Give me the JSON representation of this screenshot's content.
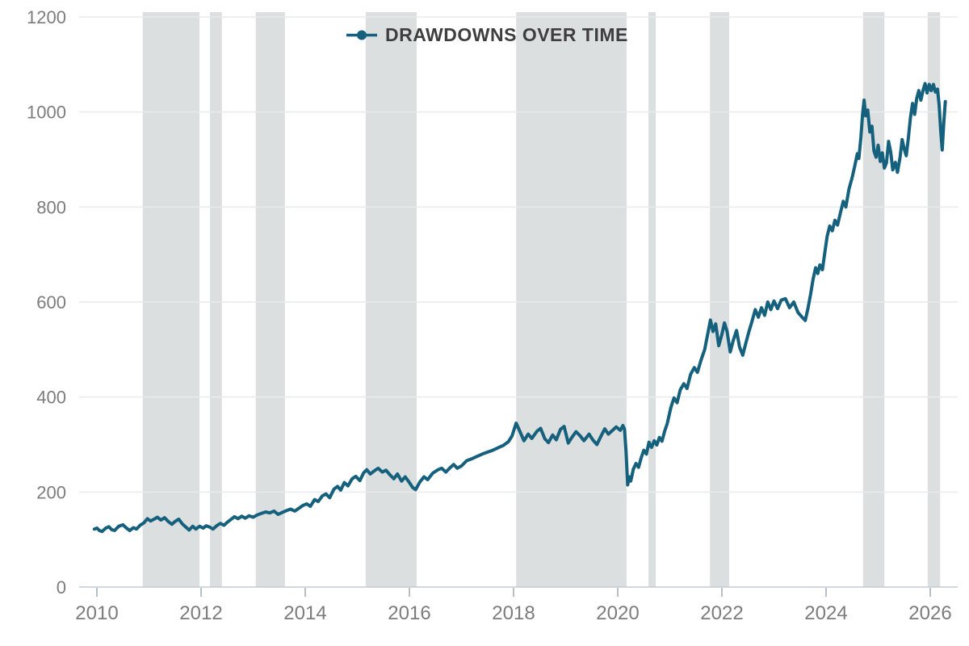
{
  "page": {
    "background": "#FFFFFF"
  },
  "legend": {
    "position": "top-center"
  },
  "chart_data": {
    "type": "line",
    "title": "DRAWDOWNS OVER TIME",
    "legend_position": "top-center",
    "grid": "horizontal",
    "x_axis": {
      "ticks": [
        2010,
        2012,
        2014,
        2016,
        2018,
        2020,
        2022,
        2024,
        2026
      ],
      "range": [
        2009.7,
        2026.55
      ]
    },
    "y_axis": {
      "ticks": [
        0,
        200,
        400,
        600,
        800,
        1000,
        1200
      ],
      "range": [
        0,
        1200
      ]
    },
    "shaded_bands": [
      {
        "from": 2010.88,
        "to": 2011.97
      },
      {
        "from": 2012.17,
        "to": 2012.4
      },
      {
        "from": 2013.05,
        "to": 2013.61
      },
      {
        "from": 2015.16,
        "to": 2016.14
      },
      {
        "from": 2018.05,
        "to": 2020.17
      },
      {
        "from": 2020.59,
        "to": 2020.73
      },
      {
        "from": 2021.77,
        "to": 2022.14
      },
      {
        "from": 2024.71,
        "to": 2025.12
      },
      {
        "from": 2025.95,
        "to": 2026.19
      }
    ],
    "colors": {
      "line": "#15607D",
      "band": "#DCDFE0",
      "grid": "#E9EAEB",
      "axis": "#C6CCD2",
      "tick": "#B4BFCA",
      "tick_label": "#7C7C7C",
      "legend_text": "#3E3E3E",
      "background": "#FFFFFF"
    },
    "series": [
      {
        "name": "DRAWDOWNS OVER TIME",
        "color": "#15607D",
        "points": [
          [
            2009.95,
            122
          ],
          [
            2010.0,
            124
          ],
          [
            2010.05,
            119
          ],
          [
            2010.1,
            117
          ],
          [
            2010.17,
            124
          ],
          [
            2010.23,
            127
          ],
          [
            2010.28,
            121
          ],
          [
            2010.34,
            119
          ],
          [
            2010.42,
            128
          ],
          [
            2010.5,
            131
          ],
          [
            2010.56,
            125
          ],
          [
            2010.63,
            119
          ],
          [
            2010.7,
            125
          ],
          [
            2010.76,
            122
          ],
          [
            2010.83,
            130
          ],
          [
            2010.9,
            135
          ],
          [
            2010.97,
            144
          ],
          [
            2011.03,
            139
          ],
          [
            2011.1,
            143
          ],
          [
            2011.16,
            147
          ],
          [
            2011.23,
            141
          ],
          [
            2011.3,
            146
          ],
          [
            2011.37,
            138
          ],
          [
            2011.44,
            132
          ],
          [
            2011.5,
            138
          ],
          [
            2011.57,
            143
          ],
          [
            2011.64,
            133
          ],
          [
            2011.71,
            126
          ],
          [
            2011.77,
            120
          ],
          [
            2011.84,
            128
          ],
          [
            2011.9,
            122
          ],
          [
            2011.97,
            128
          ],
          [
            2012.04,
            124
          ],
          [
            2012.1,
            129
          ],
          [
            2012.17,
            126
          ],
          [
            2012.23,
            122
          ],
          [
            2012.3,
            129
          ],
          [
            2012.37,
            134
          ],
          [
            2012.44,
            130
          ],
          [
            2012.51,
            137
          ],
          [
            2012.58,
            143
          ],
          [
            2012.64,
            148
          ],
          [
            2012.71,
            144
          ],
          [
            2012.78,
            149
          ],
          [
            2012.85,
            145
          ],
          [
            2012.92,
            150
          ],
          [
            2013.0,
            147
          ],
          [
            2013.08,
            152
          ],
          [
            2013.16,
            155
          ],
          [
            2013.24,
            158
          ],
          [
            2013.32,
            156
          ],
          [
            2013.4,
            160
          ],
          [
            2013.48,
            153
          ],
          [
            2013.56,
            157
          ],
          [
            2013.64,
            161
          ],
          [
            2013.72,
            164
          ],
          [
            2013.8,
            160
          ],
          [
            2013.88,
            166
          ],
          [
            2013.96,
            172
          ],
          [
            2014.03,
            175
          ],
          [
            2014.1,
            170
          ],
          [
            2014.18,
            184
          ],
          [
            2014.25,
            180
          ],
          [
            2014.33,
            192
          ],
          [
            2014.4,
            196
          ],
          [
            2014.47,
            188
          ],
          [
            2014.55,
            206
          ],
          [
            2014.62,
            212
          ],
          [
            2014.68,
            204
          ],
          [
            2014.75,
            220
          ],
          [
            2014.82,
            213
          ],
          [
            2014.9,
            228
          ],
          [
            2014.97,
            233
          ],
          [
            2015.05,
            224
          ],
          [
            2015.12,
            240
          ],
          [
            2015.18,
            247
          ],
          [
            2015.25,
            238
          ],
          [
            2015.32,
            244
          ],
          [
            2015.4,
            250
          ],
          [
            2015.48,
            242
          ],
          [
            2015.55,
            246
          ],
          [
            2015.62,
            237
          ],
          [
            2015.7,
            228
          ],
          [
            2015.77,
            238
          ],
          [
            2015.85,
            223
          ],
          [
            2015.92,
            232
          ],
          [
            2016.0,
            220
          ],
          [
            2016.06,
            210
          ],
          [
            2016.12,
            205
          ],
          [
            2016.2,
            221
          ],
          [
            2016.28,
            232
          ],
          [
            2016.35,
            226
          ],
          [
            2016.45,
            240
          ],
          [
            2016.55,
            247
          ],
          [
            2016.62,
            250
          ],
          [
            2016.7,
            242
          ],
          [
            2016.78,
            251
          ],
          [
            2016.85,
            258
          ],
          [
            2016.92,
            250
          ],
          [
            2017.0,
            255
          ],
          [
            2017.1,
            266
          ],
          [
            2017.2,
            270
          ],
          [
            2017.3,
            275
          ],
          [
            2017.4,
            280
          ],
          [
            2017.5,
            284
          ],
          [
            2017.6,
            288
          ],
          [
            2017.7,
            293
          ],
          [
            2017.8,
            298
          ],
          [
            2017.9,
            306
          ],
          [
            2017.97,
            318
          ],
          [
            2018.05,
            345
          ],
          [
            2018.12,
            328
          ],
          [
            2018.2,
            308
          ],
          [
            2018.28,
            322
          ],
          [
            2018.35,
            313
          ],
          [
            2018.45,
            328
          ],
          [
            2018.52,
            334
          ],
          [
            2018.6,
            312
          ],
          [
            2018.67,
            304
          ],
          [
            2018.75,
            320
          ],
          [
            2018.82,
            310
          ],
          [
            2018.9,
            332
          ],
          [
            2018.97,
            338
          ],
          [
            2019.05,
            303
          ],
          [
            2019.12,
            315
          ],
          [
            2019.2,
            327
          ],
          [
            2019.28,
            318
          ],
          [
            2019.35,
            308
          ],
          [
            2019.45,
            322
          ],
          [
            2019.52,
            310
          ],
          [
            2019.6,
            300
          ],
          [
            2019.68,
            318
          ],
          [
            2019.75,
            333
          ],
          [
            2019.82,
            322
          ],
          [
            2019.9,
            330
          ],
          [
            2019.97,
            337
          ],
          [
            2020.05,
            330
          ],
          [
            2020.1,
            340
          ],
          [
            2020.13,
            332
          ],
          [
            2020.16,
            285
          ],
          [
            2020.19,
            215
          ],
          [
            2020.22,
            232
          ],
          [
            2020.25,
            223
          ],
          [
            2020.3,
            248
          ],
          [
            2020.35,
            260
          ],
          [
            2020.4,
            252
          ],
          [
            2020.45,
            272
          ],
          [
            2020.5,
            288
          ],
          [
            2020.55,
            280
          ],
          [
            2020.6,
            305
          ],
          [
            2020.65,
            294
          ],
          [
            2020.7,
            308
          ],
          [
            2020.75,
            299
          ],
          [
            2020.8,
            315
          ],
          [
            2020.85,
            307
          ],
          [
            2020.9,
            328
          ],
          [
            2020.95,
            344
          ],
          [
            2021.02,
            378
          ],
          [
            2021.08,
            398
          ],
          [
            2021.14,
            388
          ],
          [
            2021.2,
            415
          ],
          [
            2021.27,
            428
          ],
          [
            2021.33,
            418
          ],
          [
            2021.4,
            448
          ],
          [
            2021.47,
            462
          ],
          [
            2021.53,
            452
          ],
          [
            2021.6,
            478
          ],
          [
            2021.67,
            500
          ],
          [
            2021.72,
            528
          ],
          [
            2021.78,
            562
          ],
          [
            2021.83,
            538
          ],
          [
            2021.88,
            554
          ],
          [
            2021.94,
            508
          ],
          [
            2022.0,
            532
          ],
          [
            2022.05,
            556
          ],
          [
            2022.1,
            538
          ],
          [
            2022.16,
            495
          ],
          [
            2022.22,
            520
          ],
          [
            2022.28,
            540
          ],
          [
            2022.34,
            505
          ],
          [
            2022.4,
            488
          ],
          [
            2022.46,
            514
          ],
          [
            2022.52,
            538
          ],
          [
            2022.58,
            560
          ],
          [
            2022.64,
            584
          ],
          [
            2022.7,
            568
          ],
          [
            2022.76,
            588
          ],
          [
            2022.82,
            572
          ],
          [
            2022.88,
            600
          ],
          [
            2022.94,
            584
          ],
          [
            2023.0,
            602
          ],
          [
            2023.07,
            586
          ],
          [
            2023.14,
            604
          ],
          [
            2023.22,
            607
          ],
          [
            2023.3,
            588
          ],
          [
            2023.38,
            600
          ],
          [
            2023.46,
            578
          ],
          [
            2023.54,
            568
          ],
          [
            2023.6,
            561
          ],
          [
            2023.65,
            585
          ],
          [
            2023.7,
            615
          ],
          [
            2023.75,
            648
          ],
          [
            2023.8,
            672
          ],
          [
            2023.84,
            660
          ],
          [
            2023.88,
            678
          ],
          [
            2023.93,
            668
          ],
          [
            2023.97,
            700
          ],
          [
            2024.02,
            738
          ],
          [
            2024.07,
            760
          ],
          [
            2024.12,
            750
          ],
          [
            2024.17,
            772
          ],
          [
            2024.22,
            762
          ],
          [
            2024.28,
            790
          ],
          [
            2024.33,
            812
          ],
          [
            2024.38,
            800
          ],
          [
            2024.44,
            838
          ],
          [
            2024.5,
            862
          ],
          [
            2024.55,
            886
          ],
          [
            2024.6,
            912
          ],
          [
            2024.63,
            902
          ],
          [
            2024.67,
            948
          ],
          [
            2024.7,
            995
          ],
          [
            2024.73,
            1025
          ],
          [
            2024.76,
            992
          ],
          [
            2024.8,
            1004
          ],
          [
            2024.84,
            958
          ],
          [
            2024.88,
            970
          ],
          [
            2024.92,
            918
          ],
          [
            2024.96,
            905
          ],
          [
            2025.0,
            930
          ],
          [
            2025.04,
            896
          ],
          [
            2025.08,
            914
          ],
          [
            2025.12,
            882
          ],
          [
            2025.16,
            893
          ],
          [
            2025.2,
            938
          ],
          [
            2025.24,
            916
          ],
          [
            2025.28,
            878
          ],
          [
            2025.33,
            894
          ],
          [
            2025.37,
            873
          ],
          [
            2025.42,
            904
          ],
          [
            2025.46,
            942
          ],
          [
            2025.5,
            922
          ],
          [
            2025.54,
            908
          ],
          [
            2025.58,
            945
          ],
          [
            2025.62,
            988
          ],
          [
            2025.66,
            1018
          ],
          [
            2025.7,
            995
          ],
          [
            2025.74,
            1028
          ],
          [
            2025.78,
            1045
          ],
          [
            2025.82,
            1025
          ],
          [
            2025.86,
            1045
          ],
          [
            2025.9,
            1060
          ],
          [
            2025.94,
            1040
          ],
          [
            2025.98,
            1058
          ],
          [
            2026.02,
            1045
          ],
          [
            2026.06,
            1058
          ],
          [
            2026.1,
            1042
          ],
          [
            2026.14,
            1048
          ],
          [
            2026.17,
            1015
          ],
          [
            2026.2,
            962
          ],
          [
            2026.23,
            920
          ],
          [
            2026.26,
            978
          ],
          [
            2026.29,
            1022
          ]
        ]
      }
    ]
  }
}
